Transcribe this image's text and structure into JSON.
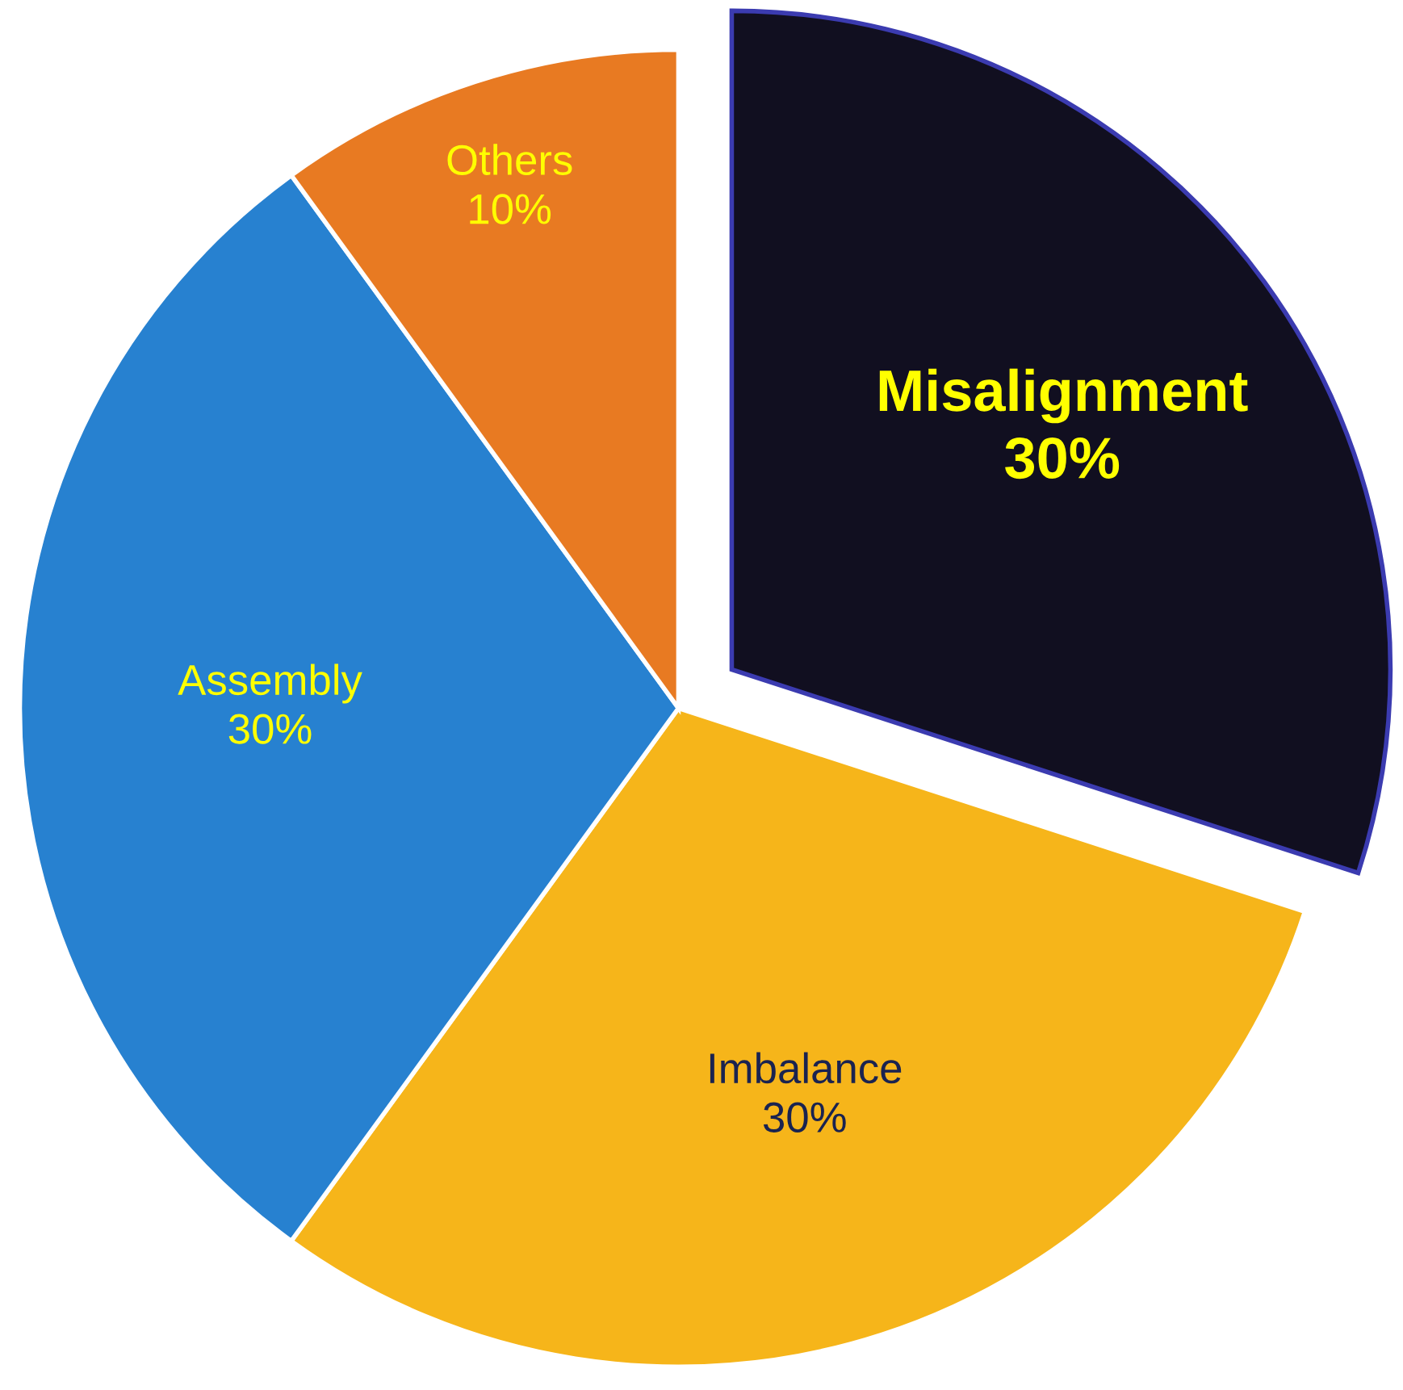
{
  "chart_data": {
    "type": "pie",
    "categories": [
      "Misalignment",
      "Imbalance",
      "Assembly",
      "Others"
    ],
    "values": [
      30,
      30,
      30,
      10
    ],
    "value_labels": [
      "30%",
      "30%",
      "30%",
      "10%"
    ],
    "colors": [
      "#110f20",
      "#f6b51a",
      "#2781d0",
      "#e87a22"
    ]
  }
}
